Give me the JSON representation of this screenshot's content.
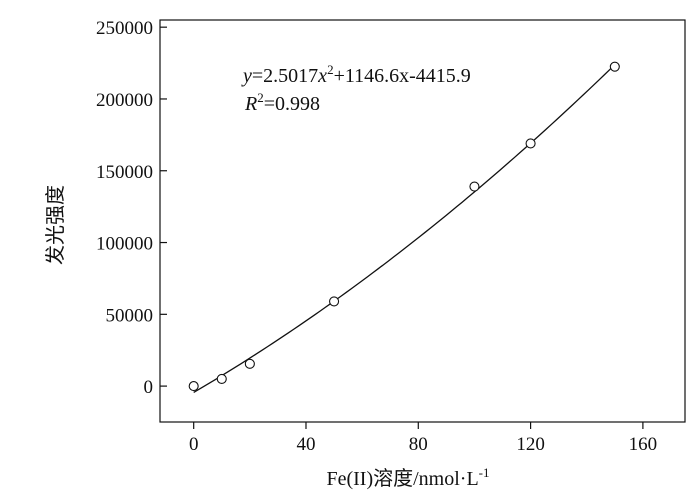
{
  "chart_data": {
    "type": "scatter",
    "xlabel": "Fe(II)溶度/nmol·L",
    "xlabel_superscript": "-1",
    "ylabel": "发光强度",
    "xlim": [
      -12,
      175
    ],
    "ylim": [
      -25000,
      255000
    ],
    "x_ticks": [
      0,
      40,
      80,
      120,
      160
    ],
    "y_ticks": [
      0,
      50000,
      100000,
      150000,
      200000,
      250000
    ],
    "grid": false,
    "points": [
      {
        "x": 0,
        "y": 0
      },
      {
        "x": 10,
        "y": 5000
      },
      {
        "x": 20,
        "y": 15500
      },
      {
        "x": 50,
        "y": 59000
      },
      {
        "x": 100,
        "y": 139000
      },
      {
        "x": 120,
        "y": 169000
      },
      {
        "x": 150,
        "y": 222500
      }
    ],
    "fit": {
      "a": 2.5017,
      "b": 1146.6,
      "c": -4415.9,
      "x_range": [
        0,
        150
      ]
    },
    "annotation": {
      "eq_y": "y",
      "eq_body": "=2.5017",
      "eq_x": "x",
      "eq_sup": "2",
      "eq_rest": "+1146.6x-4415.9",
      "r_label": "R",
      "r_sup": "2",
      "r_value": "=0.998"
    }
  }
}
